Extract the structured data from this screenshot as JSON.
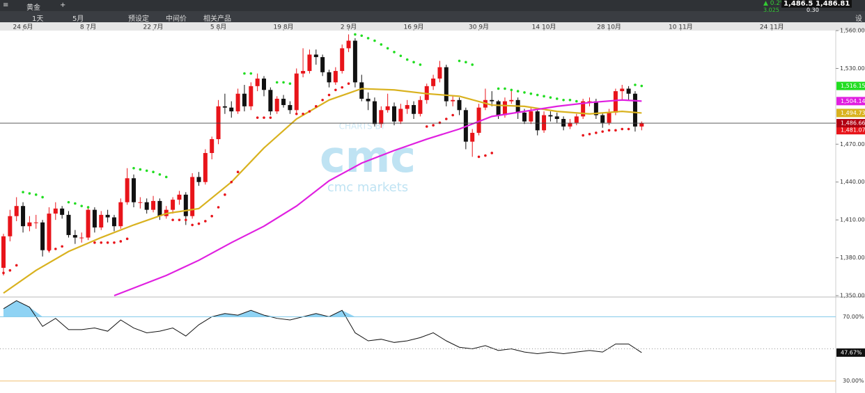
{
  "toolbar": {
    "instrument": "黄金",
    "interval": "1天",
    "range": "5月",
    "menu": [
      "预设定",
      "中间价",
      "相关产品"
    ],
    "change_pct": "▲ 0.2%",
    "change": "3.025",
    "sell": "1,486.51",
    "buy": "1,486.81",
    "spread": "0.30",
    "settings": "设"
  },
  "chart": {
    "type": "candlestick",
    "watermark": {
      "top": "CHARTS BY",
      "logo": "cmc",
      "brand": "cmc markets"
    },
    "xticks": [
      {
        "value": 3,
        "label": "24 6月"
      },
      {
        "value": 13,
        "label": "8 7月"
      },
      {
        "value": 23,
        "label": "22 7月"
      },
      {
        "value": 33,
        "label": "5 8月"
      },
      {
        "value": 43,
        "label": "19 8月"
      },
      {
        "value": 53,
        "label": "2 9月"
      },
      {
        "value": 63,
        "label": "16 9月"
      },
      {
        "value": 73,
        "label": "30 9月"
      },
      {
        "value": 83,
        "label": "14 10月"
      },
      {
        "value": 93,
        "label": "28 10月"
      },
      {
        "value": 104,
        "label": "10 11月"
      },
      {
        "value": 118,
        "label": "24 11月"
      }
    ],
    "ylim": [
      1350,
      1560
    ],
    "yticks": [
      {
        "value": 1560,
        "label": "1,560.000"
      },
      {
        "value": 1530,
        "label": "1,530.000"
      },
      {
        "value": 1470,
        "label": "1,470.000"
      },
      {
        "value": 1440,
        "label": "1,440.000"
      },
      {
        "value": 1410,
        "label": "1,410.000"
      },
      {
        "value": 1380,
        "label": "1,380.000"
      },
      {
        "value": 1350,
        "label": "1,350.000"
      }
    ],
    "up_color": "#e8141a",
    "down_color": "#111111",
    "ohlc": [
      [
        1372,
        1399,
        1366,
        1397
      ],
      [
        1397,
        1418,
        1393,
        1413
      ],
      [
        1413,
        1428,
        1409,
        1421
      ],
      [
        1421,
        1424,
        1400,
        1405
      ],
      [
        1405,
        1413,
        1401,
        1408
      ],
      [
        1408,
        1414,
        1403,
        1408
      ],
      [
        1408,
        1410,
        1381,
        1386
      ],
      [
        1386,
        1420,
        1384,
        1415
      ],
      [
        1415,
        1424,
        1410,
        1419
      ],
      [
        1419,
        1421,
        1411,
        1414
      ],
      [
        1414,
        1417,
        1396,
        1398
      ],
      [
        1398,
        1402,
        1391,
        1396
      ],
      [
        1396,
        1400,
        1392,
        1396
      ],
      [
        1396,
        1421,
        1394,
        1418
      ],
      [
        1418,
        1420,
        1400,
        1404
      ],
      [
        1404,
        1417,
        1402,
        1414
      ],
      [
        1414,
        1418,
        1408,
        1412
      ],
      [
        1412,
        1414,
        1401,
        1405
      ],
      [
        1405,
        1427,
        1403,
        1424
      ],
      [
        1424,
        1451,
        1422,
        1443
      ],
      [
        1443,
        1446,
        1420,
        1424
      ],
      [
        1424,
        1428,
        1419,
        1424
      ],
      [
        1424,
        1427,
        1415,
        1418
      ],
      [
        1418,
        1429,
        1416,
        1425
      ],
      [
        1425,
        1427,
        1410,
        1413
      ],
      [
        1413,
        1421,
        1411,
        1418
      ],
      [
        1418,
        1428,
        1415,
        1426
      ],
      [
        1426,
        1433,
        1422,
        1430
      ],
      [
        1430,
        1432,
        1406,
        1413
      ],
      [
        1413,
        1447,
        1411,
        1444
      ],
      [
        1444,
        1448,
        1437,
        1440
      ],
      [
        1440,
        1466,
        1438,
        1463
      ],
      [
        1463,
        1476,
        1458,
        1474
      ],
      [
        1474,
        1505,
        1470,
        1500
      ],
      [
        1500,
        1510,
        1494,
        1499
      ],
      [
        1499,
        1504,
        1491,
        1496
      ],
      [
        1496,
        1514,
        1494,
        1510
      ],
      [
        1510,
        1517,
        1496,
        1500
      ],
      [
        1500,
        1519,
        1497,
        1516
      ],
      [
        1516,
        1526,
        1512,
        1522
      ],
      [
        1522,
        1524,
        1508,
        1513
      ],
      [
        1513,
        1515,
        1493,
        1496
      ],
      [
        1496,
        1508,
        1494,
        1506
      ],
      [
        1506,
        1509,
        1499,
        1501
      ],
      [
        1501,
        1504,
        1494,
        1497
      ],
      [
        1497,
        1530,
        1495,
        1526
      ],
      [
        1526,
        1546,
        1523,
        1528
      ],
      [
        1528,
        1545,
        1526,
        1541
      ],
      [
        1541,
        1545,
        1533,
        1539
      ],
      [
        1539,
        1541,
        1524,
        1527
      ],
      [
        1527,
        1529,
        1515,
        1519
      ],
      [
        1519,
        1531,
        1517,
        1528
      ],
      [
        1528,
        1549,
        1526,
        1546
      ],
      [
        1546,
        1557,
        1543,
        1552
      ],
      [
        1552,
        1554,
        1515,
        1519
      ],
      [
        1519,
        1525,
        1504,
        1506
      ],
      [
        1506,
        1511,
        1497,
        1504
      ],
      [
        1504,
        1507,
        1484,
        1486
      ],
      [
        1486,
        1500,
        1483,
        1497
      ],
      [
        1497,
        1510,
        1495,
        1500
      ],
      [
        1500,
        1503,
        1485,
        1488
      ],
      [
        1488,
        1502,
        1486,
        1498
      ],
      [
        1498,
        1505,
        1494,
        1501
      ],
      [
        1501,
        1504,
        1490,
        1494
      ],
      [
        1494,
        1508,
        1492,
        1505
      ],
      [
        1505,
        1518,
        1502,
        1516
      ],
      [
        1516,
        1525,
        1513,
        1522
      ],
      [
        1522,
        1536,
        1519,
        1531
      ],
      [
        1531,
        1533,
        1500,
        1504
      ],
      [
        1504,
        1508,
        1500,
        1505
      ],
      [
        1505,
        1507,
        1493,
        1497
      ],
      [
        1497,
        1499,
        1466,
        1472
      ],
      [
        1472,
        1482,
        1460,
        1479
      ],
      [
        1479,
        1502,
        1477,
        1499
      ],
      [
        1499,
        1514,
        1497,
        1505
      ],
      [
        1505,
        1512,
        1500,
        1504
      ],
      [
        1504,
        1505,
        1490,
        1493
      ],
      [
        1493,
        1507,
        1491,
        1504
      ],
      [
        1504,
        1513,
        1502,
        1505
      ],
      [
        1505,
        1507,
        1490,
        1495
      ],
      [
        1495,
        1498,
        1486,
        1488
      ],
      [
        1488,
        1499,
        1486,
        1496
      ],
      [
        1496,
        1498,
        1477,
        1481
      ],
      [
        1481,
        1496,
        1479,
        1493
      ],
      [
        1493,
        1496,
        1488,
        1492
      ],
      [
        1492,
        1495,
        1487,
        1490
      ],
      [
        1490,
        1492,
        1481,
        1484
      ],
      [
        1484,
        1490,
        1482,
        1487
      ],
      [
        1487,
        1494,
        1485,
        1492
      ],
      [
        1492,
        1506,
        1490,
        1504
      ],
      [
        1504,
        1507,
        1500,
        1504
      ],
      [
        1504,
        1506,
        1490,
        1493
      ],
      [
        1493,
        1495,
        1483,
        1487
      ],
      [
        1487,
        1498,
        1485,
        1495
      ],
      [
        1495,
        1514,
        1493,
        1512
      ],
      [
        1512,
        1517,
        1505,
        1514
      ],
      [
        1514,
        1516,
        1505,
        1510
      ],
      [
        1510,
        1512,
        1480,
        1484
      ],
      [
        1484,
        1488,
        1481,
        1486.66
      ]
    ],
    "sar": {
      "above_color": "#22dd22",
      "below_color": "#e8141a",
      "values": [
        1368,
        1370,
        1374,
        1432,
        1431,
        1430,
        1428,
        1386,
        1387,
        1389,
        1424,
        1423,
        1421,
        1420,
        1392,
        1392,
        1392,
        1392,
        1393,
        1395,
        1451,
        1450,
        1449,
        1448,
        1446,
        1444,
        1410,
        1410,
        1410,
        1406,
        1407,
        1409,
        1413,
        1420,
        1430,
        1440,
        1448,
        1526,
        1526,
        1491,
        1491,
        1491,
        1519,
        1519,
        1518,
        1494,
        1494,
        1496,
        1500,
        1505,
        1509,
        1513,
        1515,
        1518,
        1557,
        1556,
        1554,
        1552,
        1549,
        1546,
        1543,
        1540,
        1537,
        1535,
        1533,
        1484,
        1485,
        1487,
        1490,
        1493,
        1536,
        1535,
        1533,
        1460,
        1461,
        1463,
        1514,
        1514,
        1513,
        1512,
        1511,
        1510,
        1509,
        1508,
        1507,
        1506,
        1505,
        1505,
        1504,
        1477,
        1478,
        1479,
        1480,
        1481,
        1481,
        1482,
        1482,
        1517,
        1516.15
      ]
    },
    "lines": [
      {
        "color": "#d9b21f",
        "x": [
          0,
          5,
          10,
          15,
          20,
          25,
          30,
          35,
          40,
          45,
          50,
          55,
          60,
          65,
          70,
          75,
          80,
          85,
          90,
          95,
          98
        ],
        "values": [
          1352,
          1370,
          1385,
          1396,
          1406,
          1415,
          1419,
          1440,
          1467,
          1490,
          1505,
          1514,
          1513,
          1510,
          1508,
          1501,
          1500,
          1496,
          1494,
          1496,
          1494.73
        ]
      },
      {
        "color": "#e020e0",
        "x": [
          17,
          20,
          25,
          30,
          35,
          40,
          45,
          50,
          55,
          60,
          65,
          70,
          75,
          80,
          85,
          90,
          95,
          98
        ],
        "values": [
          1350,
          1356,
          1366,
          1378,
          1392,
          1405,
          1421,
          1441,
          1455,
          1465,
          1474,
          1482,
          1492,
          1496,
          1500,
          1503,
          1505,
          1504.14
        ]
      }
    ],
    "price_tags": [
      {
        "value": 1516.15,
        "label": "1,516.15",
        "color": "#22dd22"
      },
      {
        "value": 1504.14,
        "label": "1,504.14",
        "color": "#e020e0"
      },
      {
        "value": 1494.73,
        "label": "1,494.73",
        "color": "#d9b21f"
      },
      {
        "value": 1481.07,
        "label": "1,481.07",
        "color": "#e8141a"
      },
      {
        "value": 1486.66,
        "label": "1,486.660",
        "color": "#b00010"
      }
    ],
    "current": 1486.66,
    "rsi": {
      "ylim": [
        22.5,
        82.3
      ],
      "yticks": [
        {
          "value": 70,
          "label": "70.00%"
        },
        {
          "value": 30,
          "label": "30.00%"
        }
      ],
      "mid": 50,
      "x": [
        0,
        2,
        4,
        6,
        8,
        10,
        12,
        14,
        16,
        18,
        20,
        22,
        24,
        26,
        28,
        30,
        32,
        34,
        36,
        38,
        40,
        42,
        44,
        46,
        48,
        50,
        52,
        54,
        56,
        58,
        60,
        62,
        64,
        66,
        68,
        70,
        72,
        74,
        76,
        78,
        80,
        82,
        84,
        86,
        88,
        90,
        92,
        94,
        96,
        98
      ],
      "values": [
        75,
        80,
        76,
        64,
        69,
        62,
        62,
        63,
        61,
        68,
        63,
        60,
        61,
        63,
        58,
        65,
        70,
        72,
        71,
        74,
        71,
        69,
        68,
        70,
        72,
        70,
        74,
        60,
        55,
        56,
        54,
        55,
        57,
        60,
        55,
        51,
        50,
        52,
        49,
        50,
        48,
        47,
        48,
        47,
        48,
        49,
        48,
        53,
        53,
        47.67
      ],
      "last": {
        "value": 47.67,
        "label": "47.67%"
      }
    }
  }
}
